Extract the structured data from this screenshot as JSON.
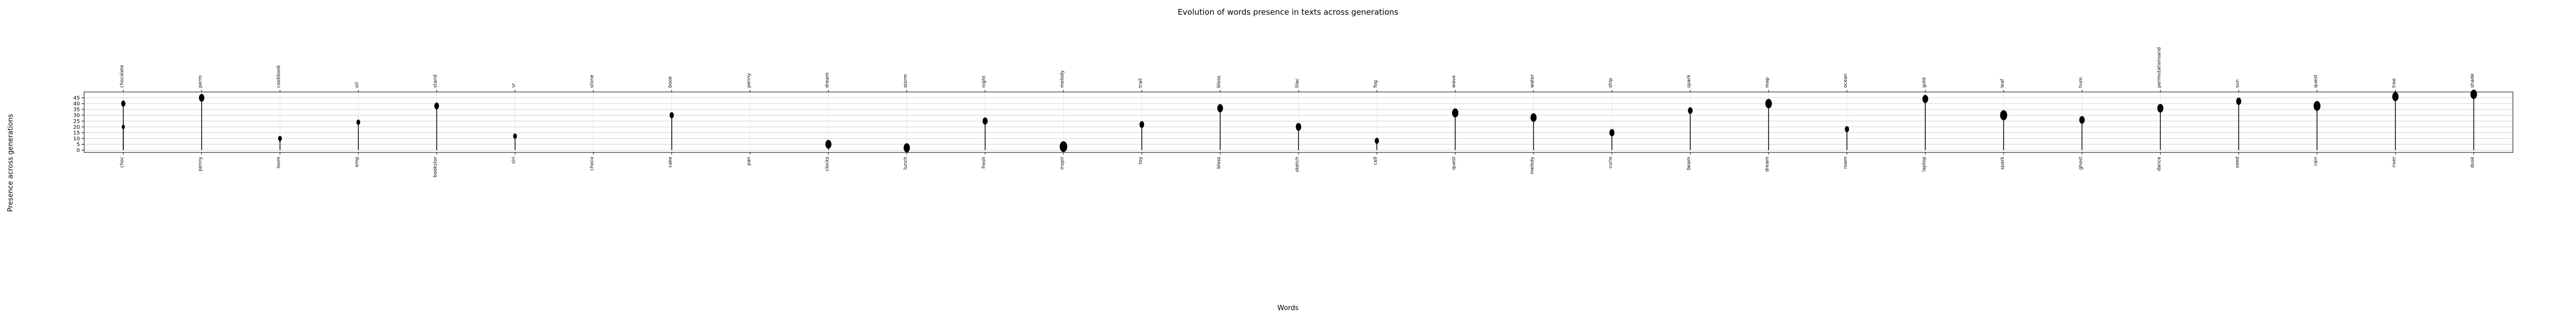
{
  "chart_data": {
    "type": "scatter",
    "title": "Evolution of words presence in texts across generations",
    "xlabel": "Words",
    "ylabel": "Presence across generations",
    "ylim": [
      -2,
      50
    ],
    "yticks": [
      0,
      5,
      10,
      15,
      20,
      25,
      30,
      35,
      40,
      45
    ],
    "grid": true,
    "marker_color": "#000000",
    "words_bottom": [
      "choc",
      "penny",
      "loom",
      "emp",
      "bookstor",
      "siri",
      "choco",
      "cake",
      "pan",
      "clocks",
      "lunch",
      "fresh",
      "inspir",
      "toy",
      "bloss",
      "sketch",
      "cell",
      "quest",
      "melody",
      "curio",
      "beam",
      "dream",
      "roam",
      "laptop",
      "spark",
      "ghost",
      "dance",
      "seed",
      "rain",
      "river",
      "dusk"
    ],
    "words_top": [
      "chocolate",
      "perm",
      "cookbook",
      "oil",
      "stand",
      "vr",
      "stone",
      "book",
      "penny",
      "dream",
      "storm",
      "night",
      "melody",
      "trail",
      "bloss",
      "lilac",
      "fog",
      "wave",
      "water",
      "ship",
      "spark",
      "map",
      "ocean",
      "gold",
      "leaf",
      "hum",
      "permutationsand",
      "sun",
      "quest",
      "tree",
      "shade"
    ],
    "points": [
      {
        "word": "choc",
        "gen": 20,
        "count": 1
      },
      {
        "word": "chocolate",
        "gen": 40,
        "count": 3
      },
      {
        "word": "penny",
        "gen": 45,
        "count": 6
      },
      {
        "word": "loom",
        "gen": 10,
        "count": 2
      },
      {
        "word": "emp",
        "gen": 24,
        "count": 2
      },
      {
        "word": "bookstor",
        "gen": 38,
        "count": 4
      },
      {
        "word": "siri",
        "gen": 12,
        "count": 2
      },
      {
        "word": "cake",
        "gen": 30,
        "count": 3
      },
      {
        "word": "clocks",
        "gen": 5,
        "count": 8
      },
      {
        "word": "lunch",
        "gen": 2,
        "count": 9
      },
      {
        "word": "fresh",
        "gen": 25,
        "count": 5
      },
      {
        "word": "inspir",
        "gen": 3,
        "count": 14
      },
      {
        "word": "toy",
        "gen": 22,
        "count": 4
      },
      {
        "word": "bloss",
        "gen": 36,
        "count": 7
      },
      {
        "word": "sketch",
        "gen": 20,
        "count": 6
      },
      {
        "word": "cell",
        "gen": 8,
        "count": 3
      },
      {
        "word": "quest",
        "gen": 32,
        "count": 9
      },
      {
        "word": "melody",
        "gen": 28,
        "count": 8
      },
      {
        "word": "curio",
        "gen": 15,
        "count": 5
      },
      {
        "word": "beam",
        "gen": 34,
        "count": 4
      },
      {
        "word": "dream",
        "gen": 40,
        "count": 10
      },
      {
        "word": "roam",
        "gen": 18,
        "count": 3
      },
      {
        "word": "laptop",
        "gen": 44,
        "count": 7
      },
      {
        "word": "spark",
        "gen": 30,
        "count": 12
      },
      {
        "word": "ghost",
        "gen": 26,
        "count": 6
      },
      {
        "word": "dance",
        "gen": 36,
        "count": 8
      },
      {
        "word": "seed",
        "gen": 42,
        "count": 5
      },
      {
        "word": "rain",
        "gen": 38,
        "count": 11
      },
      {
        "word": "river",
        "gen": 46,
        "count": 9
      },
      {
        "word": "dusk",
        "gen": 48,
        "count": 10
      }
    ]
  }
}
